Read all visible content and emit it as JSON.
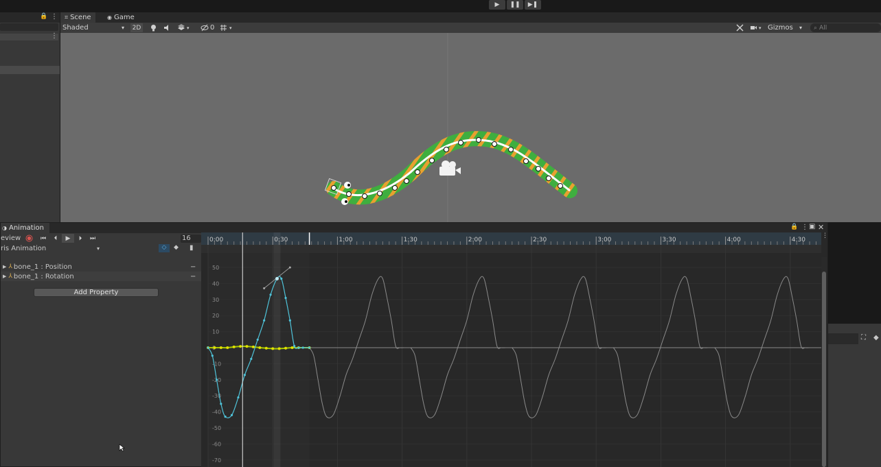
{
  "editor": {
    "play_icon": "▶",
    "pause_icon": "❚❚",
    "step_icon": "▶❚",
    "lock_icon": "🔒",
    "menu_icon": "⋮"
  },
  "scene_tabs": [
    {
      "label": "Scene",
      "icon": "grid-icon",
      "glyph": "⌗"
    },
    {
      "label": "Game",
      "icon": "gamepad-icon",
      "glyph": "◉"
    }
  ],
  "scene_toolbar": {
    "shading_mode": "Shaded",
    "dropdown_arrow": "▾",
    "mode_2d": "2D",
    "hidden_count": "0",
    "gizmos_label": "Gizmos",
    "search_placeholder": "All"
  },
  "animation": {
    "tab_label": "Animation",
    "preview_label": "eview",
    "clip_name": "ris Animation",
    "frame_value": "16",
    "add_property_label": "Add Property",
    "properties": [
      {
        "name": "bone_1 : Position"
      },
      {
        "name": "bone_1 : Rotation"
      }
    ],
    "minus_glyph": "−",
    "time_ticks": [
      "0:00",
      "0:30",
      "1:00",
      "1:30",
      "2:00",
      "2:30",
      "3:00",
      "3:30",
      "4:00",
      "4:30"
    ],
    "value_ticks": [
      "50",
      "40",
      "30",
      "20",
      "10",
      "0",
      "-10",
      "-20",
      "-30",
      "-40",
      "-50",
      "-60",
      "-70"
    ],
    "colors": {
      "rotation_curve": "#4fc3d9",
      "position_curve": "#a8c800",
      "ruler_bg": "#2f3b44",
      "record": "#d9534f"
    }
  },
  "chart_data": {
    "type": "line",
    "xlabel": "",
    "ylabel": "",
    "x_ticks": [
      "0:00",
      "0:30",
      "1:00",
      "1:30",
      "2:00",
      "2:30",
      "3:00",
      "3:30",
      "4:00",
      "4:30"
    ],
    "ylim": [
      -72,
      55
    ],
    "xlim_frames": [
      0,
      285
    ],
    "series": [
      {
        "x": [
          0,
          2,
          4,
          6,
          8,
          11,
          14,
          17,
          20,
          23,
          26,
          29,
          32,
          34,
          36,
          38,
          40,
          42,
          44,
          47
        ],
        "y": [
          0,
          -5,
          -20,
          -35,
          -43,
          -42,
          -31,
          -17,
          -7,
          5,
          17,
          33,
          43,
          43,
          31,
          17,
          1,
          0,
          0,
          0
        ]
      },
      {
        "x": [
          0,
          3,
          6,
          9,
          12,
          15,
          18,
          21,
          24,
          27,
          30,
          33,
          36,
          39,
          42,
          47
        ],
        "y": [
          0,
          0,
          0,
          0,
          0.5,
          0.8,
          0.8,
          0.5,
          0,
          -0.3,
          -0.6,
          -0.6,
          -0.3,
          0,
          0,
          0
        ]
      }
    ]
  }
}
